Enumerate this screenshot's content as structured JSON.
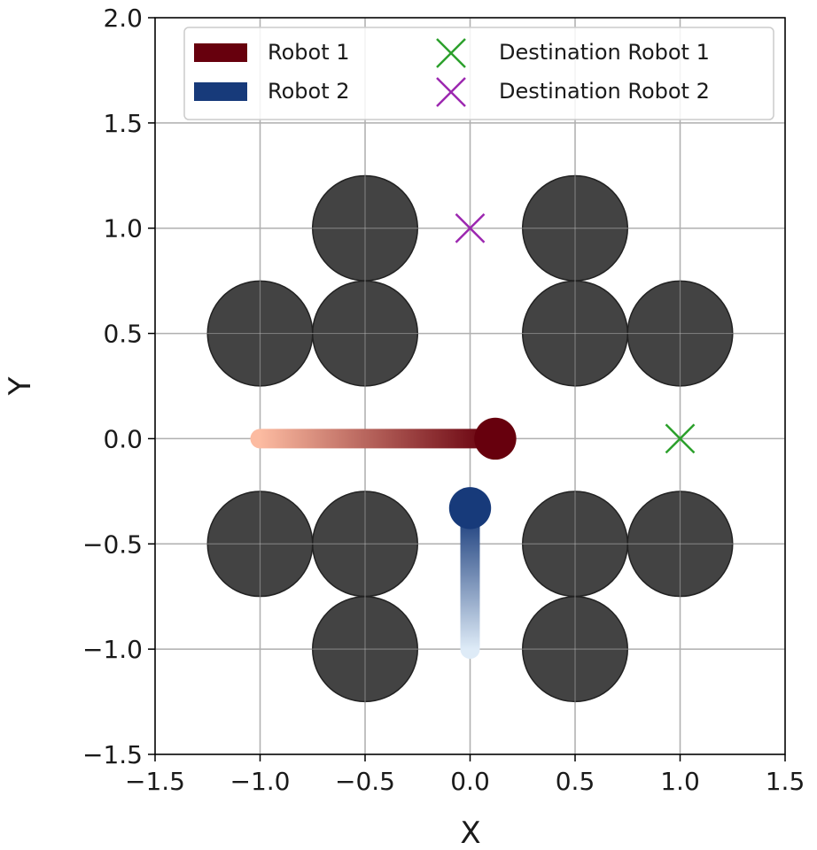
{
  "chart_data": {
    "type": "scatter",
    "title": "",
    "xlabel": "X",
    "ylabel": "Y",
    "xlim": [
      -1.5,
      1.5
    ],
    "ylim": [
      -1.5,
      2.0
    ],
    "xticks": [
      -1.5,
      -1.0,
      -0.5,
      0.0,
      0.5,
      1.0,
      1.5
    ],
    "yticks": [
      -1.5,
      -1.0,
      -0.5,
      0.0,
      0.5,
      1.0,
      1.5,
      2.0
    ],
    "xtick_labels": [
      "−1.5",
      "−1.0",
      "−0.5",
      "0.0",
      "0.5",
      "1.0",
      "1.5"
    ],
    "ytick_labels": [
      "−1.5",
      "−1.0",
      "−0.5",
      "0.0",
      "0.5",
      "1.0",
      "1.5",
      "2.0"
    ],
    "grid": true,
    "legend_position": "top-right",
    "obstacles": {
      "radius": 0.25,
      "color": "#333333",
      "centers": [
        [
          -0.5,
          1.0
        ],
        [
          0.5,
          1.0
        ],
        [
          -1.0,
          0.5
        ],
        [
          -0.5,
          0.5
        ],
        [
          0.5,
          0.5
        ],
        [
          1.0,
          0.5
        ],
        [
          -1.0,
          -0.5
        ],
        [
          -0.5,
          -0.5
        ],
        [
          0.5,
          -0.5
        ],
        [
          1.0,
          -0.5
        ],
        [
          -0.5,
          -1.0
        ],
        [
          0.5,
          -1.0
        ]
      ]
    },
    "robots": [
      {
        "name": "Robot 1",
        "legend_color": "#67000d",
        "color_start": "#fcbba1",
        "color_end": "#67000d",
        "path": {
          "x": [
            -1.0,
            0.1
          ],
          "y": [
            0.0,
            0.0
          ]
        },
        "current": [
          0.12,
          0.0
        ],
        "radius": 0.1
      },
      {
        "name": "Robot 2",
        "legend_color": "#173a7a",
        "color_start": "#deebf7",
        "color_end": "#173a7a",
        "path": {
          "x": [
            0.0,
            0.0
          ],
          "y": [
            -1.0,
            -0.35
          ]
        },
        "current": [
          0.0,
          -0.33
        ],
        "radius": 0.1
      }
    ],
    "destinations": [
      {
        "name": "Destination Robot 1",
        "x": 1.0,
        "y": 0.0,
        "color": "#2ca02c"
      },
      {
        "name": "Destination Robot 2",
        "x": 0.0,
        "y": 1.0,
        "color": "#9c27b0"
      }
    ]
  }
}
